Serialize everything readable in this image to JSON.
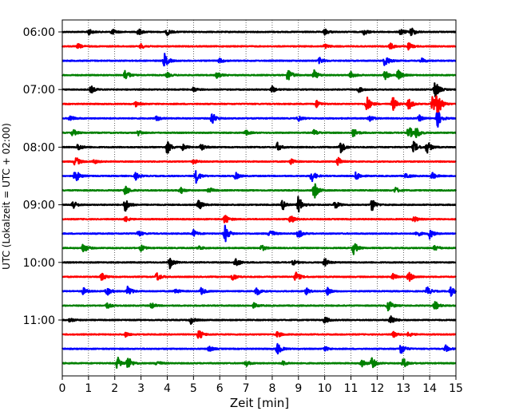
{
  "chart_data": {
    "type": "line",
    "title": "",
    "xlabel": "Zeit  [min]",
    "ylabel": "UTC (Lokalzeit = UTC + 02:00)",
    "xlim": [
      0,
      15
    ],
    "x_ticks": [
      0,
      1,
      2,
      3,
      4,
      5,
      6,
      7,
      8,
      9,
      10,
      11,
      12,
      13,
      14,
      15
    ],
    "y_tick_labels": [
      "06:00",
      "07:00",
      "08:00",
      "09:00",
      "10:00",
      "11:00"
    ],
    "row_minutes": 15,
    "row_start": "06:00",
    "row_count": 24,
    "grid": "vertical-dotted",
    "colors_cycle": [
      "#000000",
      "#ff0000",
      "#0000ff",
      "#008000"
    ],
    "rows": [
      {
        "time": "06:00",
        "color": "#000000",
        "events": [
          [
            1.0,
            0.5
          ],
          [
            1.9,
            0.5
          ],
          [
            2.9,
            0.6
          ],
          [
            4.0,
            0.5
          ],
          [
            10.0,
            0.5
          ],
          [
            11.5,
            0.5
          ],
          [
            12.9,
            0.6
          ],
          [
            13.3,
            0.8
          ]
        ]
      },
      {
        "time": "06:15",
        "color": "#ff0000",
        "events": [
          [
            0.6,
            0.4
          ],
          [
            3.0,
            0.4
          ],
          [
            10.0,
            0.4
          ],
          [
            12.5,
            0.5
          ],
          [
            13.2,
            0.6
          ]
        ]
      },
      {
        "time": "06:30",
        "color": "#0000ff",
        "events": [
          [
            3.9,
            1.2
          ],
          [
            6.0,
            0.4
          ],
          [
            9.8,
            0.5
          ],
          [
            12.3,
            1.1
          ],
          [
            13.7,
            0.4
          ]
        ]
      },
      {
        "time": "06:45",
        "color": "#008000",
        "events": [
          [
            2.4,
            1.0
          ],
          [
            4.0,
            0.4
          ],
          [
            5.9,
            0.5
          ],
          [
            8.6,
            1.2
          ],
          [
            9.6,
            0.8
          ],
          [
            11.0,
            0.6
          ],
          [
            12.3,
            0.8
          ],
          [
            12.8,
            0.9
          ]
        ]
      },
      {
        "time": "07:00",
        "color": "#000000",
        "events": [
          [
            1.1,
            0.6
          ],
          [
            5.0,
            0.4
          ],
          [
            8.0,
            0.5
          ],
          [
            11.3,
            0.5
          ],
          [
            14.2,
            1.6
          ]
        ]
      },
      {
        "time": "07:15",
        "color": "#ff0000",
        "events": [
          [
            2.8,
            0.4
          ],
          [
            9.7,
            0.6
          ],
          [
            11.6,
            1.4
          ],
          [
            12.6,
            1.2
          ],
          [
            13.2,
            1.0
          ],
          [
            14.1,
            1.7
          ],
          [
            14.3,
            2.0
          ]
        ]
      },
      {
        "time": "07:30",
        "color": "#0000ff",
        "events": [
          [
            0.3,
            0.5
          ],
          [
            3.6,
            0.4
          ],
          [
            5.7,
            1.1
          ],
          [
            9.0,
            0.5
          ],
          [
            11.7,
            0.6
          ],
          [
            13.6,
            0.5
          ],
          [
            14.3,
            1.5
          ]
        ]
      },
      {
        "time": "07:45",
        "color": "#008000",
        "events": [
          [
            0.4,
            0.6
          ],
          [
            2.9,
            0.4
          ],
          [
            7.0,
            0.4
          ],
          [
            9.6,
            0.5
          ],
          [
            11.1,
            0.8
          ],
          [
            13.2,
            1.2
          ],
          [
            13.5,
            0.9
          ]
        ]
      },
      {
        "time": "08:00",
        "color": "#000000",
        "events": [
          [
            0.6,
            0.6
          ],
          [
            4.0,
            1.2
          ],
          [
            4.6,
            0.5
          ],
          [
            5.3,
            0.6
          ],
          [
            8.2,
            0.7
          ],
          [
            10.6,
            1.1
          ],
          [
            13.4,
            1.0
          ],
          [
            13.9,
            1.1
          ]
        ]
      },
      {
        "time": "08:15",
        "color": "#ff0000",
        "events": [
          [
            0.5,
            0.9
          ],
          [
            1.2,
            0.4
          ],
          [
            5.0,
            0.4
          ],
          [
            8.7,
            0.5
          ],
          [
            10.5,
            0.8
          ]
        ]
      },
      {
        "time": "08:30",
        "color": "#0000ff",
        "events": [
          [
            0.5,
            1.2
          ],
          [
            2.8,
            0.6
          ],
          [
            5.1,
            1.1
          ],
          [
            6.6,
            0.6
          ],
          [
            9.5,
            1.0
          ],
          [
            11.2,
            0.8
          ],
          [
            13.1,
            0.5
          ],
          [
            14.1,
            0.6
          ]
        ]
      },
      {
        "time": "08:45",
        "color": "#008000",
        "events": [
          [
            2.4,
            0.9
          ],
          [
            4.5,
            0.6
          ],
          [
            5.6,
            0.5
          ],
          [
            9.6,
            1.4
          ],
          [
            12.7,
            0.5
          ]
        ]
      },
      {
        "time": "09:00",
        "color": "#000000",
        "events": [
          [
            0.4,
            0.8
          ],
          [
            2.4,
            1.2
          ],
          [
            5.2,
            0.9
          ],
          [
            8.4,
            0.9
          ],
          [
            9.0,
            1.5
          ],
          [
            10.4,
            0.7
          ],
          [
            11.8,
            1.1
          ]
        ]
      },
      {
        "time": "09:15",
        "color": "#ff0000",
        "events": [
          [
            2.4,
            0.5
          ],
          [
            6.2,
            0.8
          ],
          [
            8.7,
            0.8
          ],
          [
            13.4,
            0.5
          ]
        ]
      },
      {
        "time": "09:30",
        "color": "#0000ff",
        "events": [
          [
            2.9,
            0.5
          ],
          [
            5.0,
            0.6
          ],
          [
            6.2,
            1.5
          ],
          [
            7.9,
            0.9
          ],
          [
            9.0,
            0.8
          ],
          [
            13.5,
            0.6
          ],
          [
            14.0,
            0.8
          ]
        ]
      },
      {
        "time": "09:45",
        "color": "#008000",
        "events": [
          [
            0.8,
            0.9
          ],
          [
            3.0,
            0.5
          ],
          [
            5.2,
            0.4
          ],
          [
            7.6,
            0.5
          ],
          [
            11.1,
            1.1
          ],
          [
            14.2,
            0.5
          ]
        ]
      },
      {
        "time": "10:00",
        "color": "#000000",
        "events": [
          [
            4.1,
            1.0
          ],
          [
            6.6,
            0.9
          ],
          [
            8.8,
            0.4
          ],
          [
            10.0,
            0.7
          ]
        ]
      },
      {
        "time": "10:15",
        "color": "#ff0000",
        "events": [
          [
            1.5,
            0.7
          ],
          [
            3.6,
            0.8
          ],
          [
            6.5,
            0.6
          ],
          [
            8.9,
            0.9
          ],
          [
            12.6,
            0.5
          ],
          [
            13.2,
            0.9
          ]
        ]
      },
      {
        "time": "10:30",
        "color": "#0000ff",
        "events": [
          [
            0.8,
            0.6
          ],
          [
            1.7,
            0.8
          ],
          [
            2.5,
            0.9
          ],
          [
            4.3,
            0.5
          ],
          [
            5.3,
            0.6
          ],
          [
            7.4,
            0.8
          ],
          [
            9.3,
            0.5
          ],
          [
            10.1,
            0.6
          ],
          [
            13.9,
            0.8
          ],
          [
            14.8,
            0.8
          ]
        ]
      },
      {
        "time": "10:45",
        "color": "#008000",
        "events": [
          [
            1.7,
            0.5
          ],
          [
            3.4,
            0.5
          ],
          [
            7.3,
            0.4
          ],
          [
            12.4,
            1.2
          ],
          [
            14.2,
            0.8
          ]
        ]
      },
      {
        "time": "11:00",
        "color": "#000000",
        "events": [
          [
            0.3,
            0.4
          ],
          [
            4.9,
            0.6
          ],
          [
            10.0,
            0.6
          ],
          [
            12.5,
            1.0
          ]
        ]
      },
      {
        "time": "11:15",
        "color": "#ff0000",
        "events": [
          [
            2.4,
            0.4
          ],
          [
            5.2,
            0.9
          ],
          [
            8.2,
            0.5
          ],
          [
            12.6,
            0.5
          ],
          [
            13.2,
            0.4
          ]
        ]
      },
      {
        "time": "11:30",
        "color": "#0000ff",
        "events": [
          [
            5.6,
            0.5
          ],
          [
            8.2,
            1.0
          ],
          [
            10.0,
            0.4
          ],
          [
            12.9,
            1.0
          ],
          [
            14.6,
            0.6
          ]
        ]
      },
      {
        "time": "11:45",
        "color": "#008000",
        "events": [
          [
            2.1,
            1.1
          ],
          [
            2.5,
            1.2
          ],
          [
            3.6,
            0.5
          ],
          [
            7.0,
            0.5
          ],
          [
            8.4,
            0.4
          ],
          [
            11.4,
            0.8
          ],
          [
            11.8,
            0.9
          ],
          [
            13.0,
            0.9
          ]
        ]
      }
    ]
  }
}
